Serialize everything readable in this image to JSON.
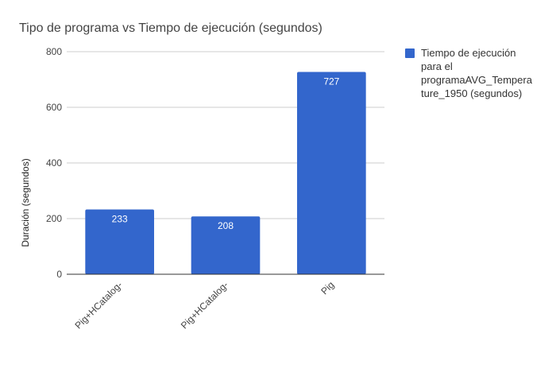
{
  "chart_data": {
    "type": "bar",
    "title": "Tipo de programa vs Tiempo de ejecución (segundos)",
    "xlabel": "",
    "ylabel": "Duración (segundos)",
    "categories": [
      "Pig+HCatalog-",
      "Pig+HCatalog-",
      "Pig"
    ],
    "series": [
      {
        "name": "Tiempo de ejecución para el programaAVG_Temperature_1950 (segundos)",
        "legend_lines": [
          "Tiempo de ejecución",
          "para el",
          "programaAVG_Tempera",
          "ture_1950 (segundos)"
        ],
        "values": [
          233,
          208,
          727
        ],
        "color": "#3366cc"
      }
    ],
    "ylim": [
      0,
      800
    ],
    "yticks": [
      0,
      200,
      400,
      600,
      800
    ],
    "grid": true,
    "legend_position": "right",
    "data_labels": true
  }
}
